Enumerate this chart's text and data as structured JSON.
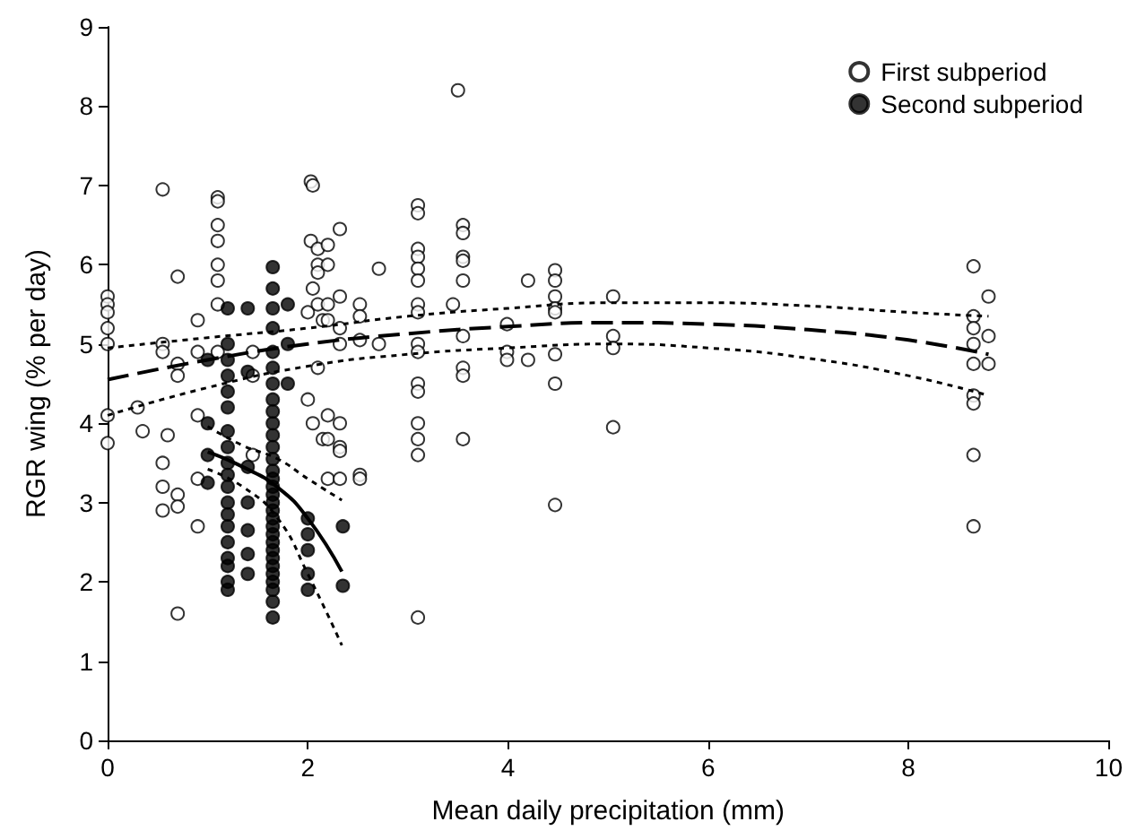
{
  "chart_data": {
    "type": "scatter",
    "xlabel": "Mean daily precipitation (mm)",
    "ylabel": "RGR wing (% per day)",
    "xlim": [
      0,
      10
    ],
    "xticks": [
      0,
      2,
      4,
      6,
      8,
      10
    ],
    "ylim": [
      0,
      9
    ],
    "yticks": [
      0,
      1,
      2,
      3,
      4,
      5,
      6,
      7,
      8,
      9
    ],
    "grid": false,
    "legend": "top right",
    "series": [
      {
        "name": "First subperiod",
        "marker": "circle",
        "color": "#ffffff",
        "x": [
          0,
          0,
          0,
          0,
          0,
          0,
          0,
          0.3,
          0.35,
          0.55,
          0.55,
          0.55,
          0.55,
          0.55,
          0.55,
          0.6,
          0.7,
          0.7,
          0.7,
          0.7,
          0.7,
          0.7,
          0.9,
          0.9,
          0.9,
          0.9,
          0.9,
          1.1,
          1.1,
          1.1,
          1.1,
          1.1,
          1.1,
          1.1,
          1.1,
          1.45,
          1.45,
          1.45,
          2.0,
          2.0,
          2.03,
          2.03,
          2.05,
          2.05,
          2.05,
          2.1,
          2.1,
          2.1,
          2.1,
          2.1,
          2.15,
          2.15,
          2.2,
          2.2,
          2.2,
          2.2,
          2.2,
          2.2,
          2.2,
          2.32,
          2.32,
          2.32,
          2.32,
          2.32,
          2.32,
          2.32,
          2.32,
          2.52,
          2.52,
          2.52,
          2.52,
          2.52,
          2.71,
          2.71,
          3.1,
          3.1,
          3.1,
          3.1,
          3.1,
          3.1,
          3.1,
          3.1,
          3.1,
          3.1,
          3.1,
          3.1,
          3.1,
          3.1,
          3.1,
          3.1,
          3.45,
          3.5,
          3.55,
          3.55,
          3.55,
          3.55,
          3.55,
          3.55,
          3.55,
          3.55,
          3.55,
          3.99,
          3.99,
          3.99,
          4.2,
          4.2,
          4.47,
          4.47,
          4.47,
          4.47,
          4.47,
          4.47,
          4.47,
          4.47,
          5.05,
          5.05,
          5.05,
          5.05,
          8.65,
          8.65,
          8.65,
          8.65,
          8.65,
          8.65,
          8.65,
          8.65,
          8.65,
          8.8,
          8.8,
          8.8
        ],
        "values": [
          5.6,
          5.5,
          5.4,
          5.2,
          5.0,
          4.1,
          3.75,
          4.2,
          3.9,
          6.95,
          5.0,
          4.9,
          3.5,
          3.2,
          2.9,
          3.85,
          5.85,
          4.75,
          4.6,
          3.1,
          2.95,
          1.6,
          5.3,
          4.9,
          4.1,
          3.3,
          2.7,
          6.85,
          6.8,
          6.5,
          6.3,
          6.0,
          5.8,
          5.5,
          4.9,
          4.9,
          4.6,
          3.6,
          5.4,
          4.3,
          7.05,
          6.3,
          7.0,
          5.7,
          4.0,
          6.2,
          6.0,
          5.9,
          5.5,
          4.7,
          5.3,
          3.8,
          6.25,
          6.0,
          5.5,
          5.3,
          4.1,
          3.8,
          3.3,
          6.45,
          5.6,
          5.2,
          5.0,
          4.0,
          3.7,
          3.65,
          3.3,
          5.5,
          5.35,
          5.05,
          3.35,
          3.3,
          5.95,
          5.0,
          6.75,
          6.65,
          6.2,
          6.1,
          5.95,
          5.8,
          5.5,
          5.4,
          5.0,
          4.9,
          4.5,
          4.4,
          4.0,
          3.8,
          3.6,
          1.55,
          5.5,
          8.2,
          6.5,
          6.4,
          6.1,
          6.05,
          5.8,
          5.1,
          4.7,
          4.6,
          3.8,
          5.25,
          4.9,
          4.8,
          5.8,
          4.8,
          5.93,
          5.8,
          5.6,
          5.45,
          5.4,
          4.87,
          4.5,
          2.97,
          5.6,
          5.1,
          4.95,
          3.95,
          5.98,
          5.35,
          5.2,
          5.0,
          4.75,
          4.35,
          4.25,
          3.6,
          2.7,
          5.6,
          5.1,
          4.75
        ]
      },
      {
        "name": "Second subperiod",
        "marker": "circle",
        "color": "#000000",
        "x": [
          1.0,
          1.0,
          1.0,
          1.0,
          1.2,
          1.2,
          1.2,
          1.2,
          1.2,
          1.2,
          1.2,
          1.2,
          1.2,
          1.2,
          1.2,
          1.2,
          1.2,
          1.2,
          1.2,
          1.2,
          1.2,
          1.2,
          1.2,
          1.4,
          1.4,
          1.4,
          1.4,
          1.4,
          1.4,
          1.4,
          1.65,
          1.65,
          1.65,
          1.65,
          1.65,
          1.65,
          1.65,
          1.65,
          1.65,
          1.65,
          1.65,
          1.65,
          1.65,
          1.65,
          1.65,
          1.65,
          1.65,
          1.65,
          1.65,
          1.65,
          1.65,
          1.65,
          1.65,
          1.65,
          1.65,
          1.65,
          1.65,
          1.65,
          1.65,
          1.65,
          1.65,
          1.8,
          1.8,
          1.8,
          2.0,
          2.0,
          2.0,
          2.0,
          2.0,
          2.35,
          2.35
        ],
        "values": [
          4.8,
          4.0,
          3.6,
          3.25,
          5.45,
          5.0,
          4.8,
          4.6,
          4.4,
          4.2,
          3.9,
          3.7,
          3.5,
          3.35,
          3.2,
          3.0,
          2.85,
          2.7,
          2.5,
          2.3,
          2.2,
          2.0,
          1.9,
          5.45,
          4.65,
          3.45,
          3.0,
          2.65,
          2.35,
          2.1,
          5.97,
          5.7,
          5.45,
          5.2,
          4.9,
          4.7,
          4.5,
          4.3,
          4.15,
          4.0,
          3.85,
          3.7,
          3.55,
          3.4,
          3.3,
          3.2,
          3.1,
          3.0,
          2.9,
          2.8,
          2.7,
          2.6,
          2.5,
          2.4,
          2.3,
          2.2,
          2.1,
          2.0,
          1.9,
          1.75,
          1.55,
          5.5,
          5.0,
          4.5,
          2.8,
          2.6,
          2.4,
          2.1,
          1.9,
          2.7,
          1.95
        ]
      },
      {
        "type": "line",
        "marker": "none",
        "color": "#000000",
        "line_style": "dashed",
        "x": [
          0,
          1,
          2,
          3,
          4,
          5,
          6,
          7,
          8,
          8.8
        ],
        "values": [
          4.55,
          4.8,
          5.0,
          5.13,
          5.22,
          5.27,
          5.25,
          5.18,
          5.05,
          4.87
        ]
      },
      {
        "type": "line",
        "marker": "none",
        "color": "#000000",
        "line_style": "dotted",
        "x": [
          0,
          1,
          2,
          3,
          4,
          5,
          6,
          7,
          8,
          8.8
        ],
        "values": [
          4.1,
          4.45,
          4.72,
          4.87,
          4.95,
          5.0,
          4.95,
          4.82,
          4.6,
          4.35
        ]
      },
      {
        "type": "line",
        "marker": "none",
        "color": "#000000",
        "line_style": "dotted",
        "x": [
          0,
          1,
          2,
          3,
          4,
          5,
          6,
          7,
          8,
          8.8
        ],
        "values": [
          4.95,
          5.08,
          5.2,
          5.35,
          5.45,
          5.52,
          5.52,
          5.48,
          5.4,
          5.35
        ]
      },
      {
        "type": "line",
        "marker": "none",
        "color": "#000000",
        "line_style": "solid",
        "x": [
          1.0,
          1.35,
          1.7,
          2.0,
          2.34
        ],
        "values": [
          3.64,
          3.45,
          3.19,
          2.8,
          2.13
        ]
      },
      {
        "type": "line",
        "marker": "none",
        "color": "#000000",
        "line_style": "dotted",
        "x": [
          1.0,
          1.35,
          1.7,
          2.0,
          2.34
        ],
        "values": [
          3.42,
          3.2,
          2.8,
          2.1,
          1.2
        ]
      },
      {
        "type": "line",
        "marker": "none",
        "color": "#000000",
        "line_style": "dotted",
        "x": [
          1.0,
          1.35,
          1.7,
          2.0,
          2.34
        ],
        "values": [
          3.96,
          3.72,
          3.55,
          3.3,
          3.03
        ]
      }
    ]
  }
}
